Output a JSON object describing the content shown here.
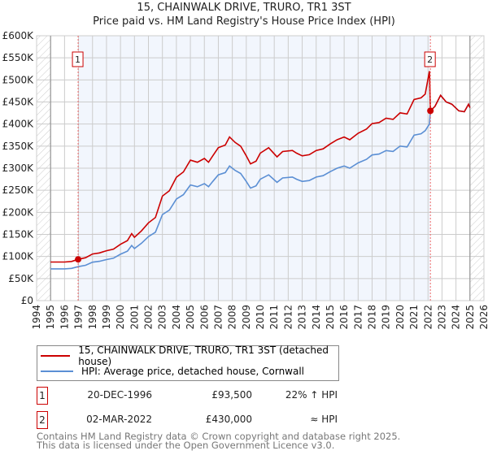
{
  "chart_data": {
    "type": "line",
    "title": "15, CHAINWALK DRIVE, TRURO, TR1 3ST",
    "subtitle": "Price paid vs. HM Land Registry's House Price Index (HPI)",
    "xlabel": "",
    "ylabel": "",
    "xlim": [
      1994,
      2026
    ],
    "ylim": [
      0,
      600
    ],
    "y_unit": "£K",
    "yticks": [
      "£0",
      "£50K",
      "£100K",
      "£150K",
      "£200K",
      "£250K",
      "£300K",
      "£350K",
      "£400K",
      "£450K",
      "£500K",
      "£550K",
      "£600K"
    ],
    "xticks": [
      "1994",
      "1995",
      "1996",
      "1997",
      "1998",
      "1999",
      "2000",
      "2001",
      "2002",
      "2003",
      "2004",
      "2005",
      "2006",
      "2007",
      "2008",
      "2009",
      "2010",
      "2011",
      "2012",
      "2013",
      "2014",
      "2015",
      "2016",
      "2017",
      "2018",
      "2019",
      "2020",
      "2021",
      "2022",
      "2023",
      "2024",
      "2025",
      "2026"
    ],
    "grid": true,
    "x": [
      1995,
      1995.5,
      1996,
      1996.5,
      1996.97,
      1997.5,
      1998,
      1998.5,
      1999,
      1999.5,
      2000,
      2000.5,
      2000.8,
      2001,
      2001.5,
      2002,
      2002.5,
      2003,
      2003.5,
      2004,
      2004.5,
      2005,
      2005.5,
      2006,
      2006.3,
      2006.6,
      2007,
      2007.5,
      2007.8,
      2008.2,
      2008.6,
      2009,
      2009.3,
      2009.7,
      2010,
      2010.6,
      2011.2,
      2011.6,
      2012.3,
      2012.6,
      2013,
      2013.5,
      2014,
      2014.5,
      2015,
      2015.5,
      2016,
      2016.4,
      2017,
      2017.6,
      2018,
      2018.5,
      2019,
      2019.5,
      2020,
      2020.5,
      2021,
      2021.5,
      2021.8,
      2022.1,
      2022.17,
      2022.5,
      2022.9,
      2023.3,
      2023.7,
      2024.2,
      2024.6,
      2024.9,
      2025.0
    ],
    "series": [
      {
        "name": "15, CHAINWALK DRIVE, TRURO, TR1 3ST (detached house)",
        "color": "#cc0000",
        "values": [
          87.5,
          87.5,
          87.5,
          88.7,
          93.5,
          97.2,
          105.7,
          108.1,
          113,
          116.6,
          127.6,
          136.1,
          151.9,
          143.4,
          158,
          176.2,
          188.3,
          236.9,
          249.1,
          279.5,
          291.6,
          318.3,
          313.5,
          322,
          313.5,
          328,
          346.3,
          352.4,
          370.6,
          358.4,
          349.9,
          328,
          309.8,
          315.9,
          334.1,
          346.3,
          325.6,
          337.8,
          340.2,
          334.1,
          328,
          330.5,
          340.2,
          343.8,
          354.8,
          364.5,
          370.6,
          364.5,
          379.1,
          388.8,
          401,
          403.4,
          413.1,
          410.7,
          425.3,
          422.8,
          455.6,
          459.3,
          467.8,
          520,
          430,
          440,
          465,
          450,
          445,
          430,
          428,
          445,
          437
        ]
      },
      {
        "name": "HPI: Average price, detached house, Cornwall",
        "color": "#5b8fd4",
        "values": [
          72,
          72,
          72,
          73,
          77,
          80,
          87,
          89,
          93,
          96,
          105,
          112,
          125,
          118,
          130,
          145,
          155,
          195,
          205,
          230,
          240,
          262,
          258,
          265,
          258,
          270,
          285,
          290,
          305,
          295,
          288,
          270,
          255,
          260,
          275,
          285,
          268,
          278,
          280,
          275,
          270,
          272,
          280,
          283,
          292,
          300,
          305,
          300,
          312,
          320,
          330,
          332,
          340,
          338,
          350,
          348,
          375,
          378,
          385,
          400,
          430,
          440,
          465,
          450,
          445,
          430,
          428,
          445,
          437
        ]
      }
    ],
    "sales": [
      {
        "label": "1",
        "x": 1996.97,
        "y": 93.5,
        "date": "20-DEC-1996",
        "price": "£93,500",
        "hpi": "22% ↑ HPI"
      },
      {
        "label": "2",
        "x": 2022.17,
        "y": 430,
        "date": "02-MAR-2022",
        "price": "£430,000",
        "hpi": "≈ HPI"
      }
    ],
    "shaded_range": [
      1996.97,
      2022.17
    ],
    "hatched_ranges": [
      [
        1994,
        1995
      ],
      [
        2025,
        2026
      ]
    ],
    "legend_placement": "below"
  },
  "footer": {
    "line1": "Contains HM Land Registry data © Crown copyright and database right 2025.",
    "line2": "This data is licensed under the Open Government Licence v3.0."
  }
}
